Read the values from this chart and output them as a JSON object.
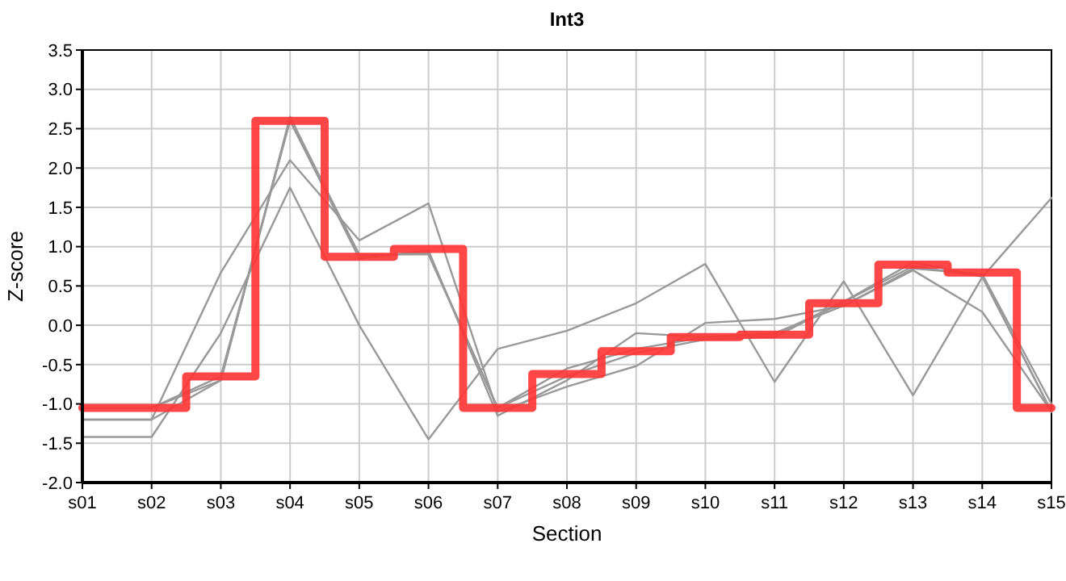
{
  "chart_data": {
    "type": "line",
    "title": "Int3",
    "xlabel": "Section",
    "ylabel": "Z-score",
    "categories": [
      "s01",
      "s02",
      "s03",
      "s04",
      "s05",
      "s06",
      "s07",
      "s08",
      "s09",
      "s10",
      "s11",
      "s12",
      "s13",
      "s14",
      "s15"
    ],
    "ylim": [
      -2.0,
      3.5
    ],
    "yticks": [
      {
        "value": -2,
        "label": "-2.0"
      },
      {
        "value": -1.5,
        "label": "-1.5"
      },
      {
        "value": -1,
        "label": "-1.0"
      },
      {
        "value": -0.5,
        "label": "-0.5"
      },
      {
        "value": 0,
        "label": "0.0"
      },
      {
        "value": 0.5,
        "label": "0.5"
      },
      {
        "value": 1,
        "label": "1.0"
      },
      {
        "value": 1.5,
        "label": "1.5"
      },
      {
        "value": 2,
        "label": "2.0"
      },
      {
        "value": 2.5,
        "label": "2.5"
      },
      {
        "value": 3,
        "label": "3.0"
      },
      {
        "value": 3.5,
        "label": "3.5"
      }
    ],
    "grid": true,
    "line_style": "solid",
    "marker": "none",
    "series": [
      {
        "color": "#999999",
        "values": [
          -1.42,
          -1.42,
          -0.1,
          1.75,
          0.0,
          -1.45,
          -0.3,
          -0.07,
          0.28,
          0.78,
          -0.72,
          0.56,
          -0.89,
          0.61,
          1.62
        ]
      },
      {
        "color": "#999999",
        "values": [
          -1.2,
          -1.2,
          0.67,
          2.1,
          1.08,
          1.55,
          -1.1,
          -0.78,
          -0.52,
          0.03,
          0.08,
          0.25,
          0.7,
          0.17,
          -1.1
        ]
      },
      {
        "color": "#999999",
        "values": [
          -1.05,
          -1.05,
          -0.7,
          2.65,
          0.88,
          0.92,
          -1.05,
          -0.65,
          -0.35,
          -0.18,
          -0.15,
          0.3,
          0.75,
          0.62,
          -1.1
        ]
      },
      {
        "color": "#999999",
        "values": [
          -1.05,
          -1.05,
          -0.65,
          2.6,
          0.85,
          0.95,
          -1.15,
          -0.7,
          -0.1,
          -0.15,
          -0.1,
          0.25,
          0.72,
          0.65,
          -1.0
        ]
      },
      {
        "color": "#999999",
        "values": [
          -1.2,
          -1.2,
          -0.7,
          2.62,
          0.9,
          0.9,
          -1.05,
          -0.55,
          -0.3,
          -0.15,
          -0.12,
          0.3,
          0.8,
          0.62,
          -1.1
        ]
      },
      {
        "type": "step",
        "color": "#ff3333",
        "values": [
          -1.05,
          -1.05,
          -0.65,
          2.6,
          0.87,
          0.97,
          -1.05,
          -0.62,
          -0.33,
          -0.15,
          -0.12,
          0.28,
          0.77,
          0.67,
          -1.05
        ]
      }
    ]
  }
}
